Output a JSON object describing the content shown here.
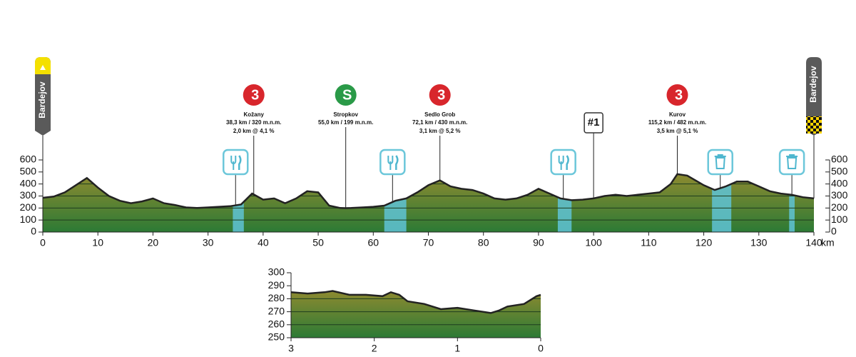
{
  "chart_data": [
    {
      "type": "area",
      "start": "Bardejov",
      "finish": "Bardejov",
      "x_unit": "km",
      "x": [
        0,
        2,
        4,
        6,
        8,
        10,
        12,
        14,
        16,
        18,
        20,
        22,
        24,
        26,
        28,
        30,
        32,
        34,
        36,
        38,
        40,
        42,
        44,
        46,
        48,
        50,
        52,
        54,
        55,
        56,
        58,
        60,
        62,
        64,
        66,
        68,
        70,
        72.1,
        74,
        76,
        78,
        80,
        82,
        84,
        86,
        88,
        90,
        92,
        94,
        96,
        98,
        100,
        102,
        104,
        106,
        108,
        110,
        112,
        114,
        115.2,
        117,
        120,
        122,
        124,
        126,
        128,
        130,
        132,
        134,
        136,
        138,
        140
      ],
      "values": [
        285,
        295,
        330,
        390,
        450,
        370,
        300,
        260,
        240,
        255,
        280,
        240,
        225,
        205,
        200,
        205,
        210,
        215,
        230,
        320,
        270,
        280,
        240,
        280,
        340,
        330,
        220,
        200,
        199,
        200,
        205,
        210,
        220,
        260,
        280,
        330,
        390,
        430,
        380,
        360,
        350,
        320,
        280,
        270,
        280,
        310,
        360,
        320,
        280,
        265,
        270,
        280,
        300,
        310,
        300,
        310,
        320,
        330,
        400,
        482,
        470,
        390,
        350,
        380,
        420,
        420,
        380,
        340,
        320,
        310,
        290,
        280
      ],
      "xlim": [
        0,
        140
      ],
      "xticks": [
        0,
        10,
        20,
        30,
        40,
        50,
        60,
        70,
        80,
        90,
        100,
        110,
        120,
        130,
        140
      ],
      "ylim": [
        0,
        600
      ],
      "yticks": [
        0,
        100,
        200,
        300,
        400,
        500,
        600
      ],
      "climbs": [
        {
          "km": 38.3,
          "badge": "3",
          "color": "#d8262c",
          "name": "Kožany",
          "line1": "38,3 km / 320 m.n.m.",
          "line2": "2,0 km @ 4,1 %"
        },
        {
          "km": 55.0,
          "badge": "S",
          "color": "#2a9a48",
          "name": "Stropkov",
          "line1": "55,0 km / 199 m.n.m."
        },
        {
          "km": 72.1,
          "badge": "3",
          "color": "#d8262c",
          "name": "Sedlo Grob",
          "line1": "72,1 km / 430 m.n.m.",
          "line2": "3,1 km @ 5,2 %"
        },
        {
          "km": 115.2,
          "badge": "3",
          "color": "#d8262c",
          "name": "Kurov",
          "line1": "115,2 km / 482 m.n.m.",
          "line2": "3,5 km @ 5,1 %"
        }
      ],
      "checkpoint": {
        "km": 100,
        "label": "#1"
      },
      "feed_zones": [
        {
          "start": 34.5,
          "end": 36.5,
          "icon": 35
        },
        {
          "start": 62,
          "end": 66,
          "icon": 63.5
        },
        {
          "start": 93.5,
          "end": 96,
          "icon": 94.5
        }
      ],
      "waste_zones": [
        {
          "start": 121.5,
          "end": 125,
          "icon": 123
        },
        {
          "start": 135.5,
          "end": 136.5,
          "icon": 136
        }
      ]
    },
    {
      "type": "area",
      "x": [
        3,
        2.8,
        2.6,
        2.5,
        2.3,
        2.1,
        1.9,
        1.8,
        1.7,
        1.6,
        1.4,
        1.2,
        1.0,
        0.8,
        0.6,
        0.5,
        0.4,
        0.2,
        0.05,
        0
      ],
      "values": [
        285,
        284,
        285,
        286,
        283,
        283,
        282,
        285,
        283,
        278,
        276,
        272,
        273,
        271,
        269,
        271,
        274,
        276,
        282,
        283
      ],
      "xlim": [
        3,
        0
      ],
      "xticks": [
        3,
        2,
        1,
        0
      ],
      "ylim": [
        250,
        300
      ],
      "yticks": [
        250,
        260,
        270,
        280,
        290,
        300
      ]
    }
  ]
}
